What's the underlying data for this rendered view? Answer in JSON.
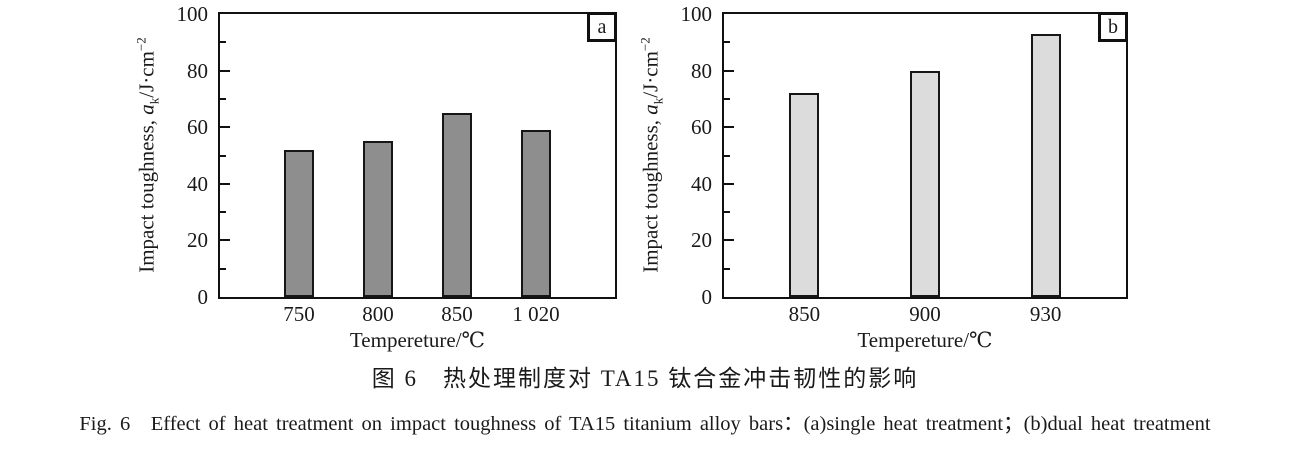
{
  "figure": {
    "caption_zh": "图 6　热处理制度对 TA15 钛合金冲击韧性的影响",
    "caption_en": "Fig. 6　Effect of heat treatment on impact toughness of TA15 titanium alloy bars：(a)single heat treatment；(b)dual heat treatment",
    "ylabel_parts": {
      "prefix": "Impact toughness, ",
      "symbol": "a",
      "subscript": "k",
      "unit": "/J·cm",
      "exponent": "−2"
    },
    "y_axis": {
      "tick_labels": [
        "0",
        "20",
        "40",
        "60",
        "80",
        "100"
      ],
      "major_step": 20,
      "minor_step": 10,
      "max": 100
    }
  },
  "chart_data": [
    {
      "type": "bar",
      "panel": "a",
      "categories": [
        "750",
        "800",
        "850",
        "1 020"
      ],
      "values": [
        52,
        55,
        65,
        59
      ],
      "xlabel": "Tempereture/℃",
      "ylabel": "Impact toughness, aₖ/J·cm⁻²",
      "ylim": [
        0,
        100
      ],
      "bar_color": "#8e8e8e",
      "grid": false,
      "legend": "none"
    },
    {
      "type": "bar",
      "panel": "b",
      "categories": [
        "850",
        "900",
        "930"
      ],
      "values": [
        72,
        80,
        93
      ],
      "xlabel": "Tempereture/℃",
      "ylabel": "Impact toughness, aₖ/J·cm⁻²",
      "ylim": [
        0,
        100
      ],
      "bar_color": "#dcdcdc",
      "grid": false,
      "legend": "none"
    }
  ]
}
